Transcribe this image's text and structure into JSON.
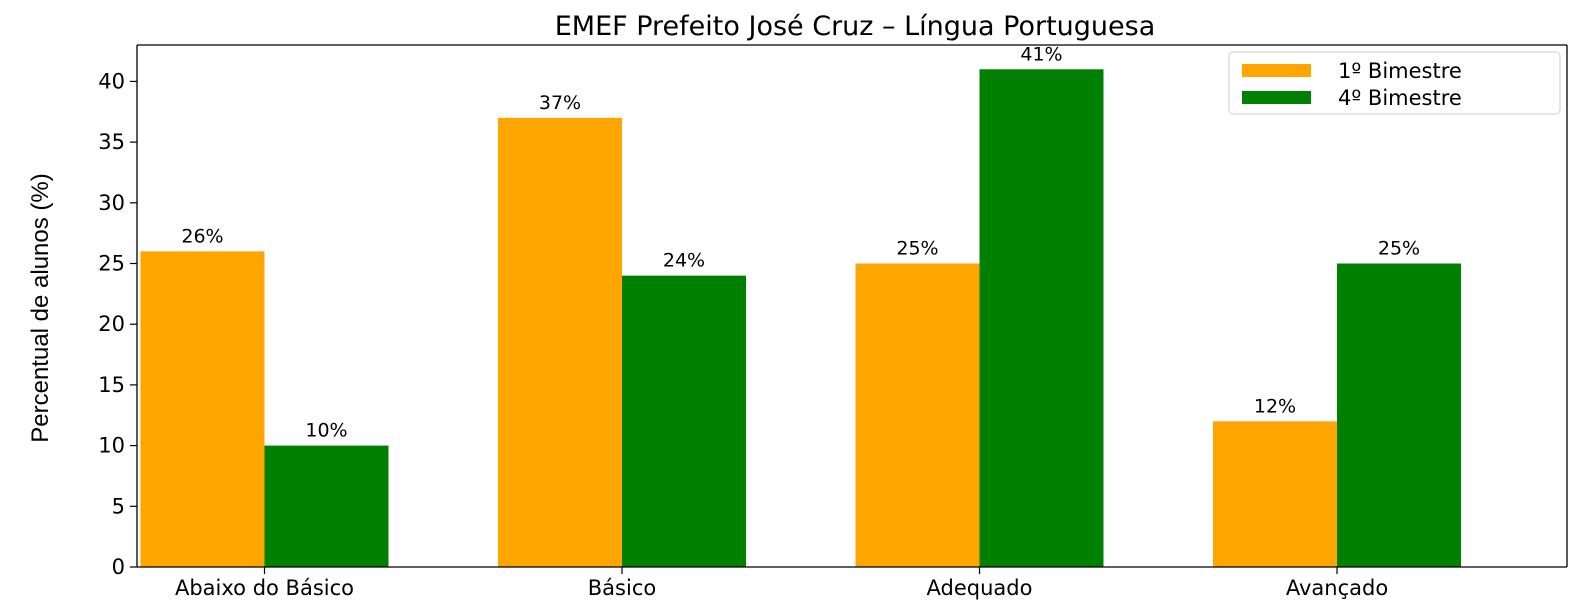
{
  "chart_data": {
    "type": "bar",
    "title": "EMEF Prefeito José Cruz – Língua Portuguesa",
    "xlabel": "",
    "ylabel": "Percentual de alunos (%)",
    "categories": [
      "Abaixo do Básico",
      "Básico",
      "Adequado",
      "Avançado"
    ],
    "series": [
      {
        "name": "1º Bimestre",
        "values": [
          26,
          37,
          25,
          12
        ],
        "labels": [
          "26%",
          "37%",
          "25%",
          "12%"
        ],
        "color": "#FFA500"
      },
      {
        "name": "4º Bimestre",
        "values": [
          10,
          24,
          41,
          25
        ],
        "labels": [
          "10%",
          "24%",
          "41%",
          "25%"
        ],
        "color": "#008000"
      }
    ],
    "yticks": [
      0,
      5,
      10,
      15,
      20,
      25,
      30,
      35,
      40
    ],
    "ylim": [
      0,
      43
    ],
    "grid": false,
    "legend_position": "top-right"
  }
}
